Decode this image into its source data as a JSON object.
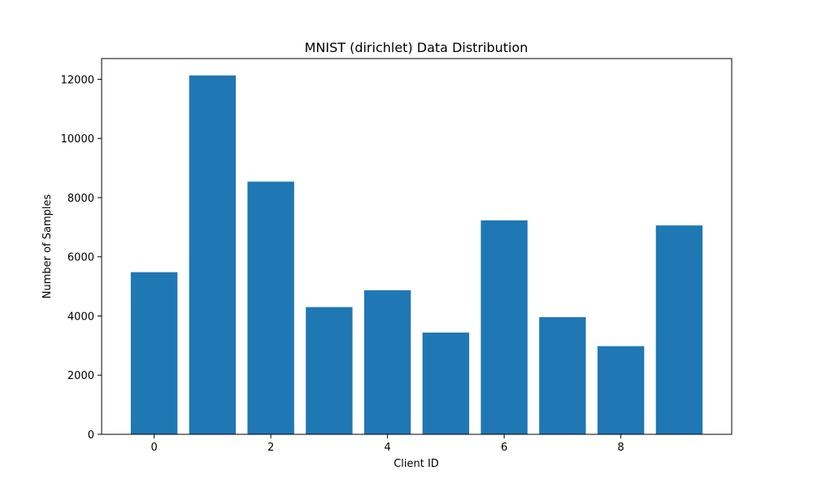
{
  "chart_data": {
    "type": "bar",
    "title": "MNIST (dirichlet) Data Distribution",
    "xlabel": "Client ID",
    "ylabel": "Number of Samples",
    "categories": [
      0,
      1,
      2,
      3,
      4,
      5,
      6,
      7,
      8,
      9
    ],
    "values": [
      5480,
      12130,
      8540,
      4300,
      4870,
      3440,
      7230,
      3960,
      2980,
      7060
    ],
    "xticks": [
      0,
      2,
      4,
      6,
      8
    ],
    "yticks": [
      0,
      2000,
      4000,
      6000,
      8000,
      10000,
      12000
    ],
    "xlim": [
      -0.9,
      9.9
    ],
    "ylim": [
      0,
      12700
    ],
    "grid": false,
    "bar_color": "#1f77b4"
  }
}
